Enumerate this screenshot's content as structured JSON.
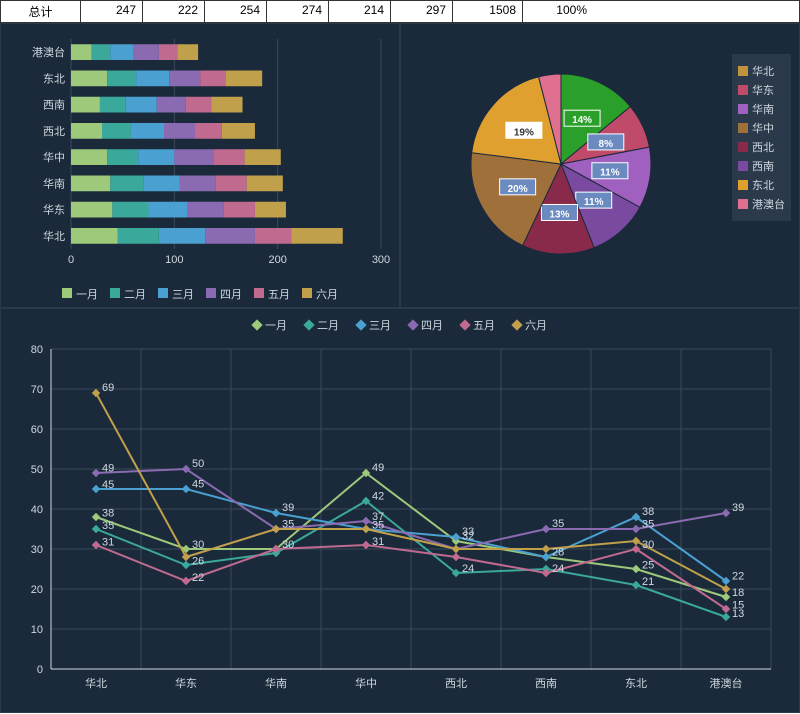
{
  "table": {
    "label": "总计",
    "cells": [
      "247",
      "222",
      "254",
      "274",
      "214",
      "297",
      "1508",
      "100%"
    ]
  },
  "colors": {
    "bg": "#1a2a3a",
    "grid": "#3a4a5a",
    "text": "#d0d8e0",
    "months": [
      "#9ec97a",
      "#3aa89a",
      "#4aa0d0",
      "#8a6ab0",
      "#c06a90",
      "#c0a04a"
    ],
    "regions": [
      "#c0923a",
      "#c04a6a",
      "#a060c0",
      "#a0703a",
      "#8a2a4a",
      "#7a4aa0",
      "#e0a030",
      "#e07090"
    ]
  },
  "regions": [
    "华北",
    "华东",
    "华南",
    "华中",
    "西北",
    "西南",
    "东北",
    "港澳台"
  ],
  "months": [
    "一月",
    "二月",
    "三月",
    "四月",
    "五月",
    "六月"
  ],
  "bar_chart": {
    "type": "stacked-horizontal-bar",
    "xlim": [
      0,
      300
    ],
    "xticks": [
      0,
      100,
      200,
      300
    ],
    "series": [
      {
        "region": "港澳台",
        "values": [
          20,
          18,
          22,
          25,
          18,
          20
        ],
        "total": 123
      },
      {
        "region": "东北",
        "values": [
          35,
          28,
          32,
          30,
          25,
          35
        ],
        "total": 185
      },
      {
        "region": "西南",
        "values": [
          28,
          25,
          30,
          28,
          25,
          30
        ],
        "total": 166
      },
      {
        "region": "西北",
        "values": [
          30,
          28,
          32,
          30,
          26,
          32
        ],
        "total": 178
      },
      {
        "region": "华中",
        "values": [
          35,
          30,
          35,
          38,
          30,
          35
        ],
        "total": 203
      },
      {
        "region": "华南",
        "values": [
          38,
          32,
          35,
          35,
          30,
          35
        ],
        "total": 205
      },
      {
        "region": "华东",
        "values": [
          40,
          35,
          38,
          35,
          30,
          30
        ],
        "total": 208
      },
      {
        "region": "华北",
        "values": [
          45,
          40,
          45,
          48,
          35,
          50
        ],
        "total": 263
      }
    ]
  },
  "pie_chart": {
    "type": "pie",
    "slices": [
      {
        "label": "华北",
        "pct": 14,
        "color": "#2aa02a",
        "label_bg": "#2aa02a",
        "label_fg": "#ffffff"
      },
      {
        "label": "华东",
        "pct": 8,
        "color": "#c04a6a",
        "label_bg": "#6a8ac0",
        "label_fg": "#ffffff"
      },
      {
        "label": "华南",
        "pct": 11,
        "color": "#a060c0",
        "label_bg": "#6a8ac0",
        "label_fg": "#ffffff"
      },
      {
        "label": "华中",
        "pct": 11,
        "color": "#7a4aa0",
        "label_bg": "#6a8ac0",
        "label_fg": "#ffffff"
      },
      {
        "label": "西北",
        "pct": 13,
        "color": "#8a2a4a",
        "label_bg": "#6a8ac0",
        "label_fg": "#ffffff"
      },
      {
        "label": "西南",
        "pct": 20,
        "color": "#a0703a",
        "label_bg": "#6a8ac0",
        "label_fg": "#ffffff"
      },
      {
        "label": "东北",
        "pct": 19,
        "color": "#e0a030",
        "label_bg": "#ffffff",
        "label_fg": "#333333"
      },
      {
        "label": "港澳台",
        "pct": 4,
        "color": "#e07090",
        "label_bg": "",
        "label_fg": ""
      }
    ]
  },
  "line_chart": {
    "type": "line",
    "ylim": [
      0,
      80
    ],
    "yticks": [
      0,
      10,
      20,
      30,
      40,
      50,
      60,
      70,
      80
    ],
    "data": {
      "一月": [
        38,
        30,
        30,
        49,
        32,
        28,
        25,
        18
      ],
      "二月": [
        35,
        26,
        29,
        42,
        24,
        25,
        21,
        13
      ],
      "三月": [
        45,
        45,
        39,
        35,
        33,
        28,
        38,
        22
      ],
      "四月": [
        49,
        50,
        35,
        37,
        30,
        35,
        35,
        39
      ],
      "五月": [
        31,
        22,
        30,
        31,
        28,
        24,
        30,
        15
      ],
      "六月": [
        69,
        28,
        35,
        35,
        30,
        30,
        32,
        20
      ]
    },
    "labels_shown": [
      {
        "x": 0,
        "vals": [
          69,
          49,
          45,
          38,
          35,
          31
        ]
      },
      {
        "x": 1,
        "vals": [
          50,
          45,
          30,
          26,
          22
        ]
      },
      {
        "x": 2,
        "vals": [
          39,
          35,
          30
        ]
      },
      {
        "x": 3,
        "vals": [
          49,
          42,
          37,
          35,
          31
        ]
      },
      {
        "x": 4,
        "vals": [
          33,
          32,
          24
        ]
      },
      {
        "x": 5,
        "vals": [
          35,
          28,
          24
        ]
      },
      {
        "x": 6,
        "vals": [
          38,
          35,
          30,
          25,
          21
        ]
      },
      {
        "x": 7,
        "vals": [
          39,
          22,
          18,
          15,
          13
        ]
      }
    ]
  }
}
